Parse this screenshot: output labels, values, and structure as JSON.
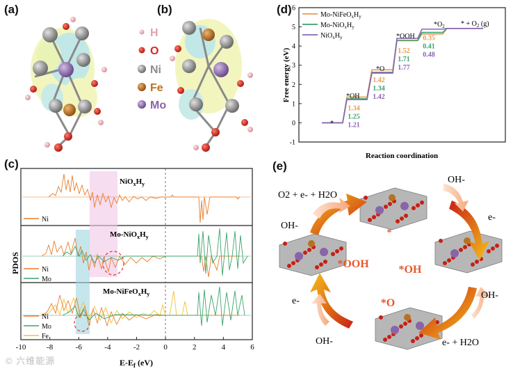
{
  "panel_labels": {
    "a": "(a)",
    "b": "(b)",
    "c": "(c)",
    "d": "(d)",
    "e": "(e)"
  },
  "legend_ab": [
    {
      "symbol": "H",
      "color": "#e6a0a8"
    },
    {
      "symbol": "O",
      "color": "#d42a20"
    },
    {
      "symbol": "Ni",
      "color": "#8c8c8c"
    },
    {
      "symbol": "Fe",
      "color": "#b8721f"
    },
    {
      "symbol": "Mo",
      "color": "#8a64a8"
    }
  ],
  "pdos": {
    "ylabel": "PDOS",
    "xlabel_main": "E-E",
    "xlabel_sub": "f",
    "xlabel_unit": " (eV)",
    "xticks": [
      "-10",
      "-8",
      "-6",
      "-4",
      "-2",
      "0",
      "2",
      "4",
      "6"
    ],
    "sub1": {
      "title_base": "NiO",
      "title_x": "x",
      "title_mid": "H",
      "title_y": "y",
      "legend": [
        {
          "label": "Ni",
          "color": "#e87e2c"
        }
      ]
    },
    "sub2": {
      "title_base": "Mo-NiO",
      "title_x": "x",
      "title_mid": "H",
      "title_y": "y",
      "legend": [
        {
          "label": "Ni",
          "color": "#e87e2c"
        },
        {
          "label": "Mo",
          "color": "#3aa36a"
        }
      ]
    },
    "sub3": {
      "title_base": "Mo-NiFeO",
      "title_x": "x",
      "title_mid": "H",
      "title_y": "y",
      "legend": [
        {
          "label": "Ni",
          "color": "#e87e2c"
        },
        {
          "label": "Mo",
          "color": "#3aa36a"
        },
        {
          "label": "Fe",
          "color": "#f1c232"
        }
      ]
    }
  },
  "chart_data": {
    "type": "line",
    "title": "",
    "xlabel": "Reaction coordination",
    "ylabel": "Free energy (eV)",
    "ylim": [
      -1,
      6
    ],
    "yticks": [
      "-1",
      "0",
      "1",
      "2",
      "3",
      "4",
      "5",
      "6"
    ],
    "steps": [
      "*",
      "*OH",
      "*O",
      "*OOH",
      "*O2",
      "* + O2 (g)"
    ],
    "series": [
      {
        "name": "Mo-NiFeOxHy",
        "name_base": "Mo-NiFeO",
        "name_x": "x",
        "name_mid": "H",
        "name_y": "y",
        "color": "#e89a50",
        "values": [
          0,
          1.34,
          2.76,
          4.28,
          4.63,
          4.92
        ],
        "step_labels": [
          "1.34",
          "1.42",
          "1.52",
          "0.35"
        ]
      },
      {
        "name": "Mo-NiOxHy",
        "name_base": "Mo-NiO",
        "name_x": "x",
        "name_mid": "H",
        "name_y": "y",
        "color": "#3aa36a",
        "values": [
          0,
          1.25,
          2.59,
          4.3,
          4.71,
          4.92
        ],
        "step_labels": [
          "1.25",
          "1.34",
          "1.71",
          "0.41"
        ]
      },
      {
        "name": "NiOxHy",
        "name_base": "NiO",
        "name_x": "x",
        "name_mid": "H",
        "name_y": "y",
        "color": "#8a64b4",
        "values": [
          0,
          1.21,
          2.63,
          4.4,
          4.88,
          4.92
        ],
        "step_labels": [
          "1.21",
          "1.42",
          "1.77",
          "0.48"
        ]
      }
    ],
    "step_text": {
      "star": "*",
      "oh": "*OH",
      "o": "*O",
      "ooh": "*OOH",
      "o2_base": "*O",
      "o2_sub": "2",
      "final": "* + O",
      "final_sub": "2",
      "final_tail": " (g)"
    }
  },
  "cycle": {
    "intermediates": {
      "star": "*",
      "oh": "*OH",
      "o": "*O",
      "ooh": "*OOH"
    },
    "species": {
      "top_left": "O2 + e- + H2O",
      "left_top": "OH-",
      "right_top_a": "OH-",
      "right_top_b": "e-",
      "right_bottom_a": "OH-",
      "right_bottom_b": "e- + H2O",
      "left_bottom_a": "e-",
      "left_bottom_b": "OH-"
    }
  },
  "watermark": "© 六维能源"
}
